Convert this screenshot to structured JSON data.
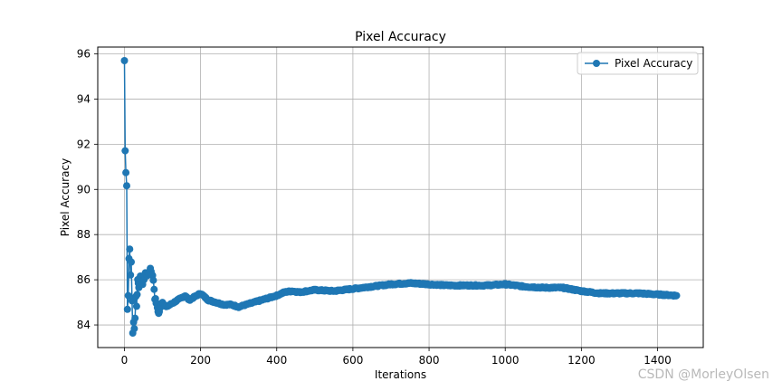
{
  "chart_data": {
    "type": "line",
    "title": "Pixel Accuracy",
    "xlabel": "Iterations",
    "ylabel": "Pixel Accuracy",
    "xlim": [
      -70,
      1520
    ],
    "ylim": [
      83.0,
      96.3
    ],
    "xticks": [
      0,
      200,
      400,
      600,
      800,
      1000,
      1200,
      1400
    ],
    "yticks": [
      84,
      86,
      88,
      90,
      92,
      94,
      96
    ],
    "grid": true,
    "legend": "top-right",
    "color": "#1f77b4",
    "series": [
      {
        "name": "Pixel Accuracy",
        "anchors": [
          [
            0,
            95.7
          ],
          [
            2,
            91.7
          ],
          [
            4,
            90.8
          ],
          [
            6,
            90.2
          ],
          [
            8,
            84.7
          ],
          [
            10,
            85.3
          ],
          [
            12,
            87.0
          ],
          [
            14,
            87.3
          ],
          [
            16,
            86.2
          ],
          [
            18,
            86.8
          ],
          [
            20,
            85.1
          ],
          [
            22,
            83.6
          ],
          [
            24,
            84.1
          ],
          [
            26,
            83.9
          ],
          [
            28,
            84.3
          ],
          [
            30,
            85.3
          ],
          [
            32,
            84.8
          ],
          [
            35,
            86.0
          ],
          [
            38,
            85.7
          ],
          [
            42,
            86.1
          ],
          [
            48,
            85.8
          ],
          [
            55,
            86.3
          ],
          [
            62,
            86.2
          ],
          [
            68,
            86.5
          ],
          [
            72,
            86.3
          ],
          [
            76,
            86.0
          ],
          [
            80,
            85.2
          ],
          [
            85,
            84.9
          ],
          [
            90,
            84.5
          ],
          [
            95,
            84.8
          ],
          [
            100,
            85.0
          ],
          [
            110,
            84.8
          ],
          [
            120,
            84.9
          ],
          [
            130,
            85.0
          ],
          [
            140,
            85.1
          ],
          [
            150,
            85.2
          ],
          [
            160,
            85.3
          ],
          [
            170,
            85.1
          ],
          [
            180,
            85.2
          ],
          [
            190,
            85.3
          ],
          [
            200,
            85.4
          ],
          [
            220,
            85.1
          ],
          [
            240,
            85.0
          ],
          [
            260,
            84.9
          ],
          [
            280,
            84.9
          ],
          [
            300,
            84.8
          ],
          [
            320,
            84.9
          ],
          [
            340,
            85.0
          ],
          [
            360,
            85.1
          ],
          [
            380,
            85.2
          ],
          [
            400,
            85.3
          ],
          [
            420,
            85.45
          ],
          [
            440,
            85.5
          ],
          [
            460,
            85.45
          ],
          [
            480,
            85.5
          ],
          [
            500,
            85.55
          ],
          [
            550,
            85.5
          ],
          [
            600,
            85.6
          ],
          [
            650,
            85.7
          ],
          [
            700,
            85.8
          ],
          [
            750,
            85.85
          ],
          [
            800,
            85.8
          ],
          [
            850,
            85.75
          ],
          [
            900,
            85.75
          ],
          [
            950,
            85.75
          ],
          [
            1000,
            85.8
          ],
          [
            1050,
            85.7
          ],
          [
            1100,
            85.65
          ],
          [
            1150,
            85.65
          ],
          [
            1200,
            85.5
          ],
          [
            1250,
            85.4
          ],
          [
            1300,
            85.4
          ],
          [
            1350,
            85.4
          ],
          [
            1400,
            85.35
          ],
          [
            1450,
            85.3
          ]
        ]
      }
    ]
  },
  "watermark": "CSDN @MorleyOlsen"
}
